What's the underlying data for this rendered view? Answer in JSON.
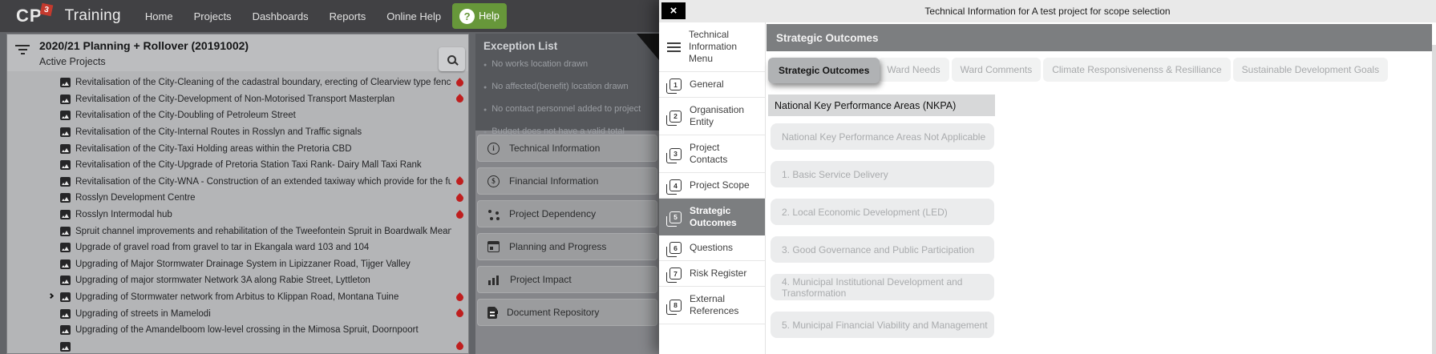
{
  "colors": {
    "flame_red": "#bf1e1e",
    "logo_red": "#c43a2e",
    "help_green": "#67973a",
    "selected_gray": "#7c7e80"
  },
  "nav": {
    "logo_cp": "CP",
    "logo_sup": "3",
    "app_title": "Training",
    "items": [
      "Home",
      "Projects",
      "Dashboards",
      "Reports",
      "Online Help"
    ],
    "help_qmark": "?",
    "help_label": "Help"
  },
  "project_panel": {
    "title": "2020/21 Planning + Rollover (20191002)",
    "subtitle": "Active Projects",
    "items": [
      {
        "label": "Revitalisation of the City-Cleaning of the cadastral boundary, erecting of Clearview type fence with",
        "flame": true
      },
      {
        "label": "Revitalisation of the City-Development of Non-Motorised Transport Masterplan",
        "flame": true
      },
      {
        "label": "Revitalisation of the City-Doubling of Petroleum Street"
      },
      {
        "label": "Revitalisation of the City-Internal Routes in Rosslyn and Traffic signals"
      },
      {
        "label": "Revitalisation of the City-Taxi Holding areas within the Pretoria CBD"
      },
      {
        "label": "Revitalisation of the City-Upgrade of Pretoria Station Taxi Rank- Dairy Mall Taxi Rank"
      },
      {
        "label": "Revitalisation of the City-WNA - Construction of an extended taxiway which provide for the further expansion",
        "flame": true
      },
      {
        "label": "Rosslyn Development Centre",
        "flame": true
      },
      {
        "label": "Rosslyn Intermodal hub",
        "flame": true
      },
      {
        "label": "Spruit channel improvements and rehabilitation of the Tweefontein Spruit in Boardwalk Meander"
      },
      {
        "label": "Upgrade of gravel road from gravel to tar in Ekangala ward 103 and 104"
      },
      {
        "label": "Upgrading of Major Stormwater Drainage System in Lipizzaner Road, Tijger Valley"
      },
      {
        "label": "Upgrading of major stormwater Network 3A along Rabie Street, Lyttleton"
      },
      {
        "label": "Upgrading of Stormwater network from Arbitus to Klippan Road, Montana Tuine",
        "flame": true,
        "expand": true
      },
      {
        "label": "Upgrading of streets in Mamelodi",
        "flame": true
      },
      {
        "label": "Upgrading of the Amandelboom low-level crossing in the Mimosa Spruit, Doornpoort"
      },
      {
        "label": "",
        "flame": true
      }
    ]
  },
  "exception_panel": {
    "title": "Exception List",
    "bullets": [
      "No works location drawn",
      "No affected(benefit) location drawn",
      "No contact personnel added to project",
      "Budget does not have a valid total"
    ],
    "menu": [
      {
        "icon": "info-circle-icon",
        "glyph": "i",
        "label": "Technical Information"
      },
      {
        "icon": "dollar-circle-icon",
        "glyph": "$",
        "label": "Financial Information"
      },
      {
        "icon": "dependency-icon",
        "label": "Project Dependency"
      },
      {
        "icon": "calendar-icon",
        "label": "Planning and Progress"
      },
      {
        "icon": "chart-icon",
        "label": "Project Impact"
      },
      {
        "icon": "document-icon",
        "label": "Document Repository"
      }
    ]
  },
  "modal": {
    "title": "Technical Information for A test project for scope selection",
    "close_glyph": "×",
    "menu": {
      "header": "Technical Information Menu",
      "items": [
        {
          "num": "1",
          "label": "General"
        },
        {
          "num": "2",
          "label": "Organisation Entity"
        },
        {
          "num": "3",
          "label": "Project Contacts"
        },
        {
          "num": "4",
          "label": "Project Scope"
        },
        {
          "num": "5",
          "label": "Strategic Outcomes",
          "selected": true
        },
        {
          "num": "6",
          "label": "Questions"
        },
        {
          "num": "7",
          "label": "Risk Register"
        },
        {
          "num": "8",
          "label": "External References"
        }
      ]
    },
    "content": {
      "header": "Strategic Outcomes",
      "tabs": [
        {
          "label": "Strategic Outcomes",
          "state": "selected"
        },
        {
          "label": "Ward Needs"
        },
        {
          "label": "Ward Comments"
        },
        {
          "label": "Climate Responsivenenss & Resilliance"
        },
        {
          "label": "Sustainable Development Goals"
        }
      ],
      "section_header": "National Key Performance Areas (NKPA)",
      "options": [
        "National Key Performance Areas Not Applicable",
        "1. Basic Service Delivery",
        "2. Local Economic Development (LED)",
        "3. Good Governance and Public Participation",
        "4. Municipal Institutional Development and Transformation",
        "5. Municipal Financial Viability and Management"
      ]
    }
  }
}
